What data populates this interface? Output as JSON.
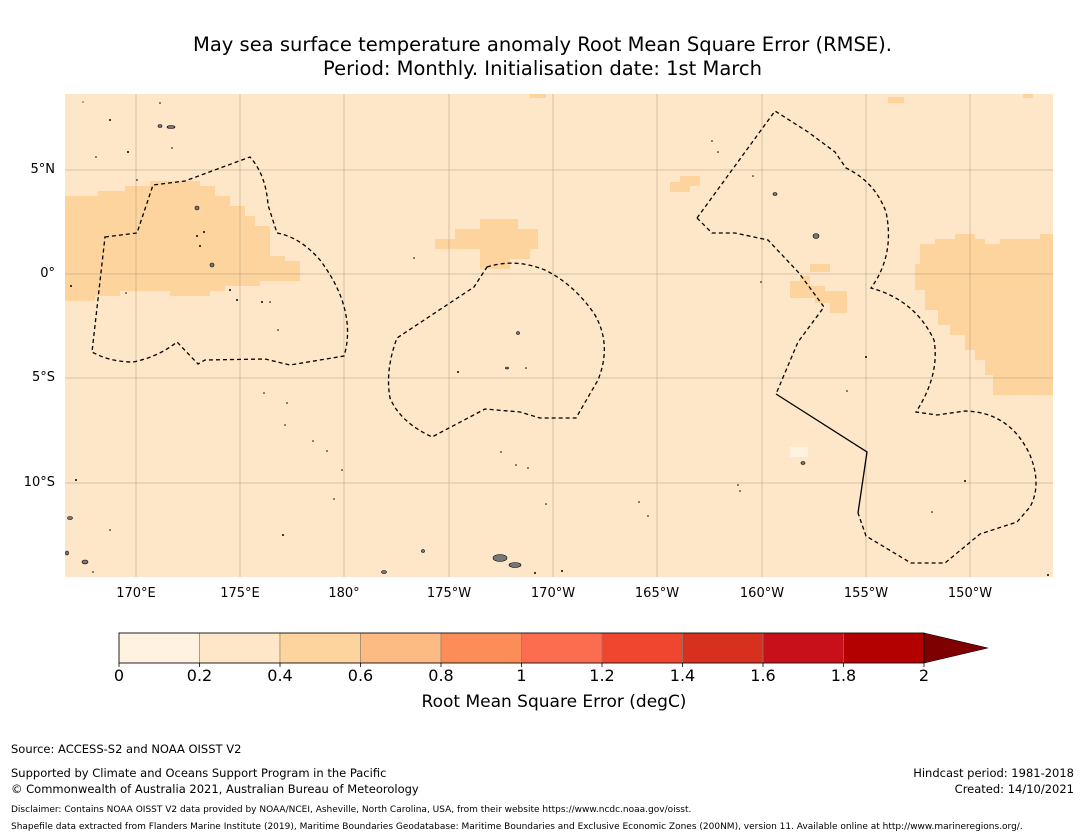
{
  "title": {
    "line1": "May sea surface temperature anomaly Root Mean Square Error (RMSE).",
    "line2": "Period: Monthly. Initialisation date: 1st March"
  },
  "map": {
    "lon_ticks": [
      "170°E",
      "175°E",
      "180°",
      "175°W",
      "170°W",
      "165°W",
      "160°W",
      "155°W",
      "150°W"
    ],
    "lat_ticks": [
      "5°N",
      "0°",
      "5°S",
      "10°S"
    ],
    "gridlines": true,
    "background_class": "0.2-0.4"
  },
  "colorbar": {
    "ticks": [
      "0",
      "0.2",
      "0.4",
      "0.6",
      "0.8",
      "1",
      "1.2",
      "1.4",
      "1.6",
      "1.8",
      "2"
    ],
    "colors": [
      "#fff2e1",
      "#fee6c8",
      "#fdd49e",
      "#fdbb84",
      "#fc8d59",
      "#fc6c4e",
      "#f0462f",
      "#d7301f",
      "#c8101a",
      "#b30000",
      "#7f0000"
    ],
    "label": "Root Mean Square Error (degC)",
    "extend": "max"
  },
  "footer": {
    "source": "Source: ACCESS-S2 and NOAA OISST V2",
    "supported": "Supported by Climate and Oceans Support Program in the Pacific",
    "copyright": "© Commonwealth of Australia 2021, Australian Bureau of Meteorology",
    "hindcast": "Hindcast period: 1981-2018",
    "created": "Created: 14/10/2021",
    "disclaimer": "Disclaimer: Contains NOAA OISST V2 data provided by NOAA/NCEI, Asheville, North Carolina, USA, from their website https://www.ncdc.noaa.gov/oisst.",
    "shapefile": "Shapefile data extracted from Flanders Marine Institute (2019), Maritime Boundaries Geodatabase: Maritime Boundaries and Exclusive Economic Zones (200NM), version 11. Available online at http://www.marineregions.org/."
  }
}
